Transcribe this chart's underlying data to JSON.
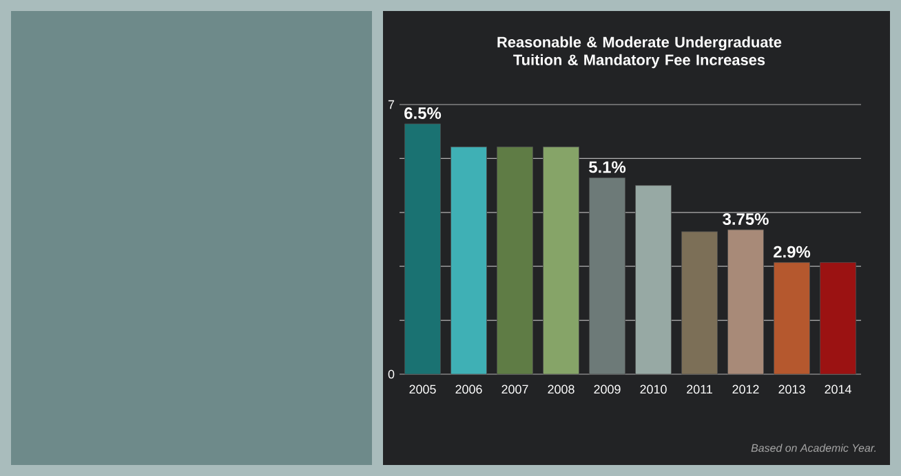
{
  "chart_data": {
    "type": "bar",
    "title": "Reasonable & Moderate Undergraduate Tuition & Mandatory Fee Increases",
    "categories": [
      "2005",
      "2006",
      "2007",
      "2008",
      "2009",
      "2010",
      "2011",
      "2012",
      "2013",
      "2014"
    ],
    "values": [
      6.5,
      5.9,
      5.9,
      5.9,
      5.1,
      4.9,
      3.7,
      3.75,
      2.9,
      2.9
    ],
    "colors": [
      "#1a7272",
      "#3fb0b5",
      "#5f7c45",
      "#86a468",
      "#6d7a78",
      "#97a9a4",
      "#7c6f57",
      "#a88a78",
      "#b5582e",
      "#9b1212"
    ],
    "value_labels": [
      "6.5%",
      null,
      null,
      null,
      "5.1%",
      null,
      null,
      "3.75%",
      "2.9%",
      null
    ],
    "ylim": [
      0,
      7
    ],
    "yticks": [
      0,
      {
        "value": 1.4,
        "label": null
      },
      {
        "value": 2.8,
        "label": null
      },
      {
        "value": 4.2,
        "label": null
      },
      {
        "value": 5.6,
        "label": null
      },
      7
    ],
    "grid": "y",
    "annotations": [
      "Based on Academic Year."
    ]
  }
}
